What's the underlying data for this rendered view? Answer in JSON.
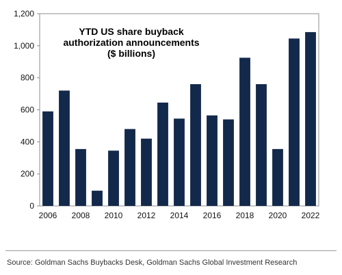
{
  "chart_data": {
    "type": "bar",
    "title_lines": [
      "YTD US share buyback",
      "authorization announcements",
      "($ billions)"
    ],
    "categories": [
      "2006",
      "2007",
      "2008",
      "2009",
      "2010",
      "2011",
      "2012",
      "2013",
      "2014",
      "2015",
      "2016",
      "2017",
      "2018",
      "2019",
      "2020",
      "2021",
      "2022"
    ],
    "values": [
      590,
      720,
      355,
      95,
      345,
      480,
      420,
      645,
      545,
      760,
      565,
      540,
      925,
      760,
      355,
      1045,
      1085
    ],
    "x_tick_labels": [
      "2006",
      "2008",
      "2010",
      "2012",
      "2014",
      "2016",
      "2018",
      "2020",
      "2022"
    ],
    "y_tick_labels": [
      "0",
      "200",
      "400",
      "600",
      "800",
      "1,000",
      "1,200"
    ],
    "ylim": [
      0,
      1200
    ],
    "y_ticks": [
      0,
      200,
      400,
      600,
      800,
      1000,
      1200
    ],
    "xlabel": "",
    "ylabel": "",
    "grid": false,
    "bar_color": "#13294b"
  },
  "source": "Source: Goldman Sachs Buybacks Desk, Goldman Sachs Global Investment Research"
}
